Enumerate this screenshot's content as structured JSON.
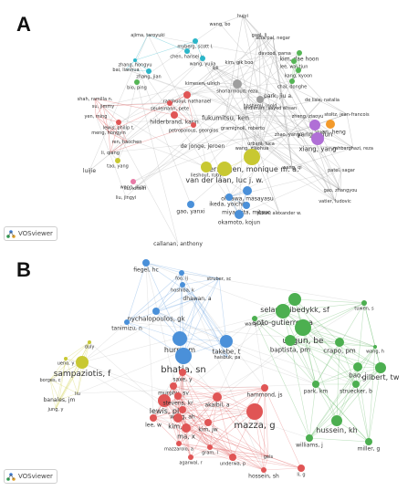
{
  "panel_a": {
    "label": "A",
    "badge_text": "VOSviewer",
    "nodes": [
      {
        "label": "hujyi",
        "color": "#9e9e9e"
      },
      {
        "label": "wang, bo",
        "color": "#9e9e9e"
      },
      {
        "label": "gaol, li",
        "color": "#9e9e9e"
      },
      {
        "label": "aciarpal, negar",
        "color": "#9e9e9e"
      },
      {
        "label": "ajima, taroyuki",
        "color": "#2bb6c9"
      },
      {
        "label": "myberg, scott l.",
        "color": "#2bb6c9"
      },
      {
        "label": "chen, hansei y.",
        "color": "#2bb6c9"
      },
      {
        "label": "wang, yujia",
        "color": "#2bb6c9"
      },
      {
        "label": "davood, parsa",
        "color": "#9e9e9e"
      },
      {
        "label": "kim, dae hoon",
        "color": "#55b555"
      },
      {
        "label": "zhang, hongyu",
        "color": "#2bb6c9"
      },
      {
        "label": "kim, gik boo",
        "color": "#9e9e9e"
      },
      {
        "label": "lee, wai-tjun",
        "color": "#55b555"
      },
      {
        "label": "bai, lianhua",
        "color": "#2bb6c9"
      },
      {
        "label": "zhang, jian",
        "color": "#2bb6c9"
      },
      {
        "label": "lijli",
        "color": "#9e9e9e"
      },
      {
        "label": "kang, kyoon",
        "color": "#55b555"
      },
      {
        "label": "bio, ping",
        "color": "#55b555"
      },
      {
        "label": "kimesen, ulrich",
        "color": "#9e9e9e"
      },
      {
        "label": "shoriarmoud, reza",
        "color": "#9e9e9e"
      },
      {
        "label": "chai, donghe",
        "color": "#55b555"
      },
      {
        "label": "razzhuoui, nathanael",
        "color": "#e05555"
      },
      {
        "label": "hashemi, jnold",
        "color": "#9e9e9e"
      },
      {
        "label": "park, jiu a.",
        "color": "#9e9e9e"
      },
      {
        "label": "shah, ramilla n.",
        "color": "#e05555"
      },
      {
        "label": "seulemann, pete",
        "color": "#e05555"
      },
      {
        "label": "endierani, sayed ehsan",
        "color": "#9e9e9e"
      },
      {
        "label": "de lisle, natalia",
        "color": "#9e9e9e"
      },
      {
        "label": "su, jimmy",
        "color": "#e05555"
      },
      {
        "label": "hilderbrand, karin",
        "color": "#e05555"
      },
      {
        "label": "fukumitsu, ken",
        "color": "#9e9e9e"
      },
      {
        "label": "zheng, ziaoyu",
        "color": "#9e9e9e"
      },
      {
        "label": "stoltz, jean-francois",
        "color": "#9e9e9e"
      },
      {
        "label": "yen, ming",
        "color": "#e05555"
      },
      {
        "label": "lewis, philip t.",
        "color": "#e05555"
      },
      {
        "label": "petropolous, georgios",
        "color": "#e05555"
      },
      {
        "label": "gramignoli, roberto",
        "color": "#9e9e9e"
      },
      {
        "label": "yang, yijun",
        "color": "#b06fd6"
      },
      {
        "label": "yuan, heng",
        "color": "#f39a2b"
      },
      {
        "label": "meng, hongyin",
        "color": "#e05555"
      },
      {
        "label": "xiang, yang",
        "color": "#b06fd6"
      },
      {
        "label": "zhao, yanyu",
        "color": "#9e9e9e"
      },
      {
        "label": "ren, haochen",
        "color": "#e05555"
      },
      {
        "label": "urbani, luca",
        "color": "#9e9e9e"
      },
      {
        "label": "wang, xiaohua",
        "color": "#9e9e9e"
      },
      {
        "label": "rahbarghazi, reza",
        "color": "#9e9e9e"
      },
      {
        "label": "li, qiang",
        "color": "#e05555"
      },
      {
        "label": "de jonge, jeroen",
        "color": "#b5b53a"
      },
      {
        "label": "verstegen, monique m. a.",
        "color": "#c8c832"
      },
      {
        "label": "tao, yang",
        "color": "#c8c832"
      },
      {
        "label": "lieshout, ruby",
        "color": "#c8c832"
      },
      {
        "label": "wang, qi",
        "color": "#9e9e9e"
      },
      {
        "label": "patel, sagar",
        "color": "#9e9e9e"
      },
      {
        "label": "luijie",
        "color": "#9e9e9e"
      },
      {
        "label": "van der laan, luc j. w.",
        "color": "#c8c832"
      },
      {
        "label": "wang, jiyan",
        "color": "#e879a6"
      },
      {
        "label": "liu, xinxin",
        "color": "#e879a6"
      },
      {
        "label": "ohkawa, masayasu",
        "color": "#4a90d9"
      },
      {
        "label": "gao, zhangyou",
        "color": "#9e9e9e"
      },
      {
        "label": "ikeda, yoichito",
        "color": "#4a90d9"
      },
      {
        "label": "vatier, ludovic",
        "color": "#9e9e9e"
      },
      {
        "label": "liu, jingyi",
        "color": "#e879a6"
      },
      {
        "label": "miyashita, mitsuo",
        "color": "#4a90d9"
      },
      {
        "label": "gao, yanxi",
        "color": "#4a90d9"
      },
      {
        "label": "okamoto, kojun",
        "color": "#4a90d9"
      },
      {
        "label": "justin, alexander w.",
        "color": "#9e9e9e"
      },
      {
        "label": "callanan, anthony",
        "color": "#4a90d9"
      }
    ]
  },
  "panel_b": {
    "label": "B",
    "badge_text": "VOSviewer",
    "nodes": [
      {
        "label": "fiegel, hc",
        "color": "#4a90d9"
      },
      {
        "label": "foo, ij",
        "color": "#4a90d9"
      },
      {
        "label": "struber, sc",
        "color": "#4a90d9"
      },
      {
        "label": "hoshiba, k",
        "color": "#4a90d9"
      },
      {
        "label": "dhawan, a",
        "color": "#4a90d9"
      },
      {
        "label": "selam, tibedykk, sf",
        "color": "#4caf50"
      },
      {
        "label": "tuwen, s",
        "color": "#4caf50"
      },
      {
        "label": "nychalopoulos, gk",
        "color": "#4a90d9"
      },
      {
        "label": "soto-gutierrez, a",
        "color": "#4caf50"
      },
      {
        "label": "tanimizu, n",
        "color": "#4a90d9"
      },
      {
        "label": "wang, yt",
        "color": "#4caf50"
      },
      {
        "label": "uygun, be",
        "color": "#4caf50"
      },
      {
        "label": "hurry, m",
        "color": "#4a90d9"
      },
      {
        "label": "takebe, t",
        "color": "#4a90d9"
      },
      {
        "label": "baptista, pm",
        "color": "#4caf50"
      },
      {
        "label": "crapo, pm",
        "color": "#4caf50"
      },
      {
        "label": "duly",
        "color": "#c8c832"
      },
      {
        "label": "wang, h",
        "color": "#4caf50"
      },
      {
        "label": "bhatia, sn",
        "color": "#4a90d9"
      },
      {
        "label": "haisbuk, pa",
        "color": "#4a90d9"
      },
      {
        "label": "ueno, y",
        "color": "#c8c832"
      },
      {
        "label": "sampaziotis, f",
        "color": "#c8c832"
      },
      {
        "label": "bao, j",
        "color": "#4caf50"
      },
      {
        "label": "gilbert, tw",
        "color": "#4caf50"
      },
      {
        "label": "borges, c",
        "color": "#c8c832"
      },
      {
        "label": "saxe, y",
        "color": "#e05555"
      },
      {
        "label": "park, km",
        "color": "#4caf50"
      },
      {
        "label": "struecker, b",
        "color": "#4caf50"
      },
      {
        "label": "banales, jm",
        "color": "#c8c832"
      },
      {
        "label": "murphy, sv",
        "color": "#e05555"
      },
      {
        "label": "hammond, js",
        "color": "#e05555"
      },
      {
        "label": "liu",
        "color": "#c8c832"
      },
      {
        "label": "lewis, pl",
        "color": "#e05555"
      },
      {
        "label": "stevens, kr",
        "color": "#e05555"
      },
      {
        "label": "akaibil, a",
        "color": "#e05555"
      },
      {
        "label": "jung, y",
        "color": "#c8c832"
      },
      {
        "label": "wang, ah",
        "color": "#e05555"
      },
      {
        "label": "mazza, g",
        "color": "#e05555"
      },
      {
        "label": "hussein, kh",
        "color": "#4caf50"
      },
      {
        "label": "lee, w",
        "color": "#e05555"
      },
      {
        "label": "kim, y",
        "color": "#e05555"
      },
      {
        "label": "ma, x",
        "color": "#e05555"
      },
      {
        "label": "kim, jw",
        "color": "#e05555"
      },
      {
        "label": "williams, j",
        "color": "#4caf50"
      },
      {
        "label": "mazzarolo, a",
        "color": "#e05555"
      },
      {
        "label": "miller, g",
        "color": "#4caf50"
      },
      {
        "label": "gram, l",
        "color": "#e05555"
      },
      {
        "label": "agarwal, r",
        "color": "#e05555"
      },
      {
        "label": "underwa, p",
        "color": "#e05555"
      },
      {
        "label": "gels",
        "color": "#e05555"
      },
      {
        "label": "hossein, sh",
        "color": "#e05555"
      },
      {
        "label": "li, g",
        "color": "#e05555"
      }
    ]
  }
}
